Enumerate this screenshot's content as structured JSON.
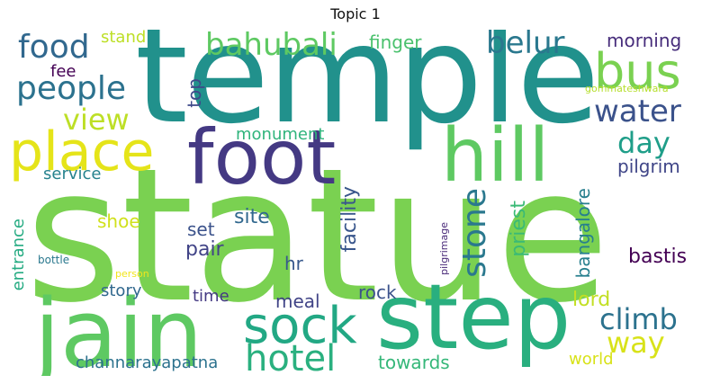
{
  "title": "Topic 1",
  "words": {
    "statue": {
      "text": "statue",
      "color": "#7ad151"
    },
    "temple": {
      "text": "temple",
      "color": "#21918c"
    },
    "step": {
      "text": "step",
      "color": "#29af7f"
    },
    "jain": {
      "text": "jain",
      "color": "#5ec962"
    },
    "foot": {
      "text": "foot",
      "color": "#443983"
    },
    "hill": {
      "text": "hill",
      "color": "#5ec962"
    },
    "place": {
      "text": "place",
      "color": "#e5e419"
    },
    "bus": {
      "text": "bus",
      "color": "#7ad151"
    },
    "sock": {
      "text": "sock",
      "color": "#22a884"
    },
    "hotel": {
      "text": "hotel",
      "color": "#2ab07f"
    },
    "people": {
      "text": "people",
      "color": "#2c728e"
    },
    "food": {
      "text": "food",
      "color": "#31688e"
    },
    "bahubali": {
      "text": "bahubali",
      "color": "#5ec962"
    },
    "belur": {
      "text": "belur",
      "color": "#2a788e"
    },
    "water": {
      "text": "water",
      "color": "#3b528b"
    },
    "view": {
      "text": "view",
      "color": "#bddf26"
    },
    "day": {
      "text": "day",
      "color": "#1f9e89"
    },
    "climb": {
      "text": "climb",
      "color": "#2c728e"
    },
    "way": {
      "text": "way",
      "color": "#d8e219"
    },
    "stone": {
      "text": "stone",
      "color": "#2a788e"
    },
    "morning": {
      "text": "morning",
      "color": "#472d7b"
    },
    "finger": {
      "text": "finger",
      "color": "#4ac16d"
    },
    "stand": {
      "text": "stand",
      "color": "#bddf26"
    },
    "fee": {
      "text": "fee",
      "color": "#440154"
    },
    "gommateshwara": {
      "text": "gommateshwara",
      "color": "#b5de2b"
    },
    "top": {
      "text": "top",
      "color": "#3e4989"
    },
    "monument": {
      "text": "monument",
      "color": "#2fb47c"
    },
    "service": {
      "text": "service",
      "color": "#26828e"
    },
    "pilgrim": {
      "text": "pilgrim",
      "color": "#404688"
    },
    "shoe": {
      "text": "shoe",
      "color": "#d0e11c"
    },
    "site": {
      "text": "site",
      "color": "#31688e"
    },
    "set": {
      "text": "set",
      "color": "#3b528b"
    },
    "pair": {
      "text": "pair",
      "color": "#414487"
    },
    "hr": {
      "text": "hr",
      "color": "#38598c"
    },
    "facility": {
      "text": "facility",
      "color": "#39568c"
    },
    "priest": {
      "text": "priest",
      "color": "#3aba76"
    },
    "bangalore": {
      "text": "bangalore",
      "color": "#277f8e"
    },
    "bastis": {
      "text": "bastis",
      "color": "#440154"
    },
    "entrance": {
      "text": "entrance",
      "color": "#25ab82"
    },
    "bottle": {
      "text": "bottle",
      "color": "#2a788e"
    },
    "person": {
      "text": "person",
      "color": "#f1e51d"
    },
    "pilgrimage": {
      "text": "pilgrimage",
      "color": "#482878"
    },
    "story": {
      "text": "story",
      "color": "#31688e"
    },
    "time": {
      "text": "time",
      "color": "#443983"
    },
    "meal": {
      "text": "meal",
      "color": "#414487"
    },
    "rock": {
      "text": "rock",
      "color": "#3b528b"
    },
    "lord": {
      "text": "lord",
      "color": "#c2df23"
    },
    "channarayapatna": {
      "text": "channarayapatna",
      "color": "#2c728e"
    },
    "towards": {
      "text": "towards",
      "color": "#35b779"
    },
    "world": {
      "text": "world",
      "color": "#d8e219"
    }
  }
}
